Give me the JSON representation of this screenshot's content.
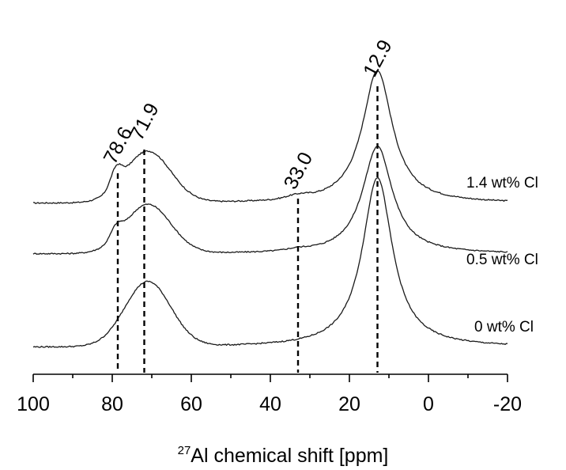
{
  "chart_data": {
    "type": "line",
    "title": "",
    "xlabel_sup": "27",
    "xlabel_main": "Al chemical shift [ppm]",
    "xlim": [
      100,
      -20
    ],
    "x_reversed": true,
    "x_ticks": [
      "100",
      "80",
      "60",
      "40",
      "20",
      "0",
      "-20"
    ],
    "grid": false,
    "y_axis_shown": false,
    "series": [
      {
        "name": "1.4 wt% Cl"
      },
      {
        "name": "0.5 wt% Cl"
      },
      {
        "name": "0 wt% Cl"
      }
    ],
    "reference_lines": [
      {
        "x": 78.6,
        "label": "78.6"
      },
      {
        "x": 71.9,
        "label": "71.9"
      },
      {
        "x": 33.0,
        "label": "33.0"
      },
      {
        "x": 12.9,
        "label": "12.9"
      }
    ]
  }
}
